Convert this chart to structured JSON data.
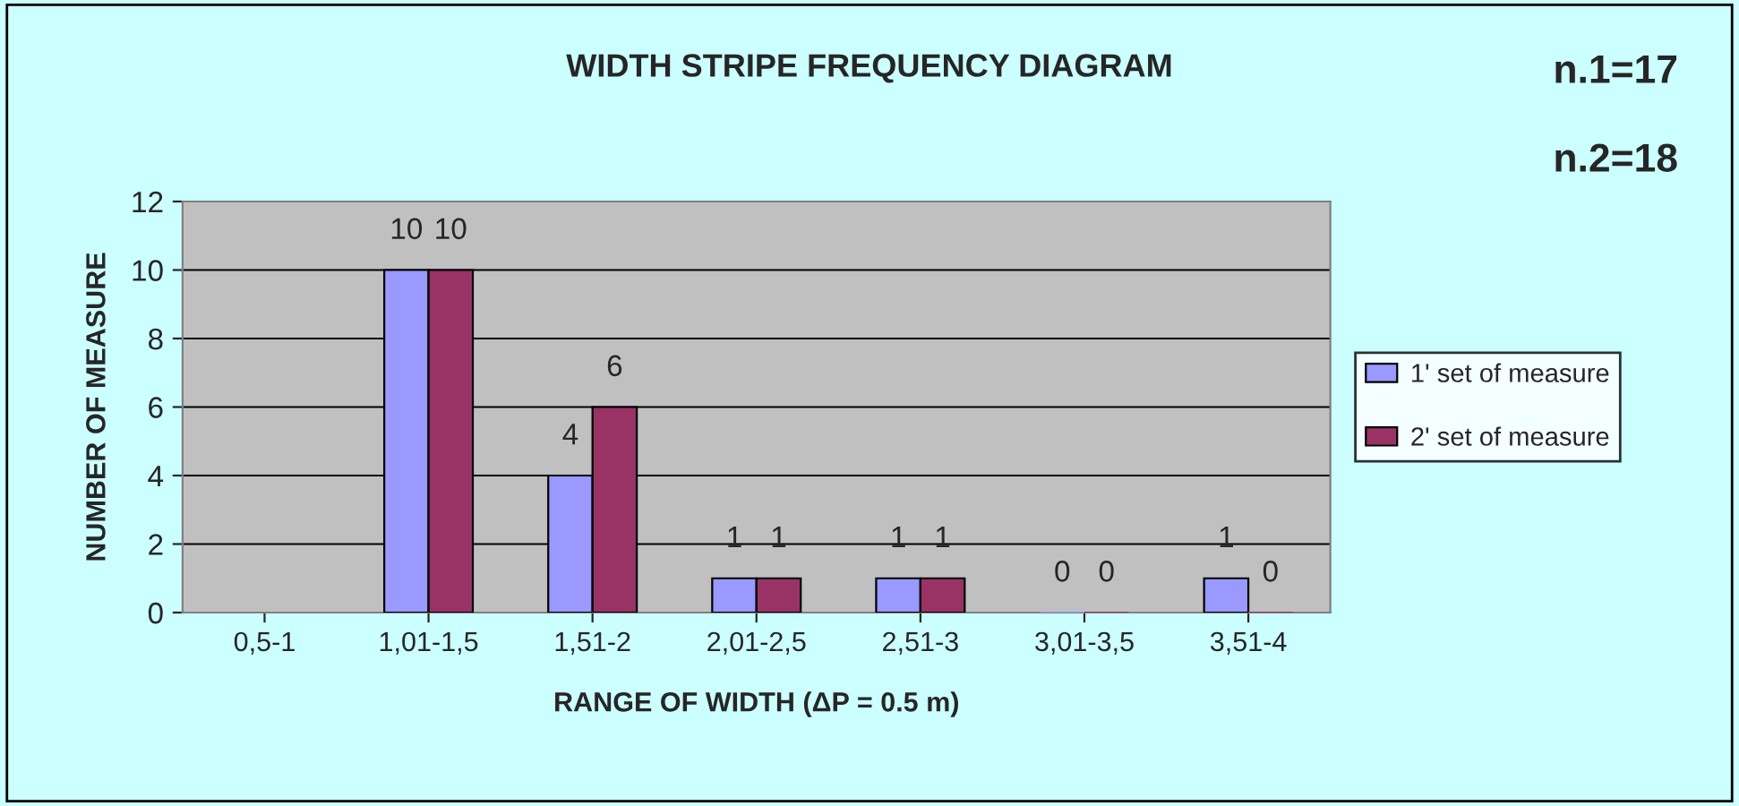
{
  "chart_data": {
    "type": "bar",
    "title": "WIDTH STRIPE FREQUENCY DIAGRAM",
    "xlabel": "RANGE OF WIDTH (ΔP = 0.5 m)",
    "ylabel": "NUMBER OF MEASURE",
    "categories": [
      "0,5-1",
      "1,01-1,5",
      "1,51-2",
      "2,01-2,5",
      "2,51-3",
      "3,01-3,5",
      "3,51-4"
    ],
    "series": [
      {
        "name": "1' set of measure",
        "color": "#9999ff",
        "values": [
          null,
          10,
          4,
          1,
          1,
          0,
          1
        ]
      },
      {
        "name": "2' set of measure",
        "color": "#993366",
        "values": [
          null,
          10,
          6,
          1,
          1,
          0,
          0
        ]
      }
    ],
    "ylim": [
      0,
      12
    ],
    "yticks": [
      0,
      2,
      4,
      6,
      8,
      10,
      12
    ],
    "grid": "y",
    "legend": "right",
    "data_labels": true,
    "annotations": [
      "n.1=17",
      "n.2=18"
    ]
  }
}
